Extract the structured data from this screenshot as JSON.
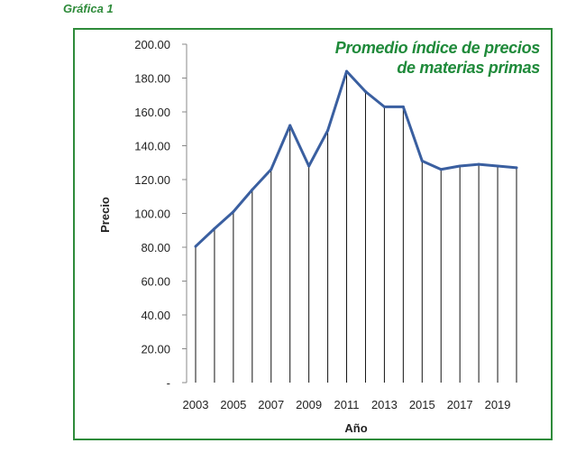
{
  "caption": "Gráfica 1",
  "chart_data": {
    "type": "line",
    "title_lines": [
      "Promedio índice de precios",
      "de materias primas"
    ],
    "xlabel": "Año",
    "ylabel": "Precio",
    "x": [
      2003,
      2004,
      2005,
      2006,
      2007,
      2008,
      2009,
      2010,
      2011,
      2012,
      2013,
      2014,
      2015,
      2016,
      2017,
      2018,
      2019,
      2020
    ],
    "x_tick_labels": [
      "2003",
      "2005",
      "2007",
      "2009",
      "2011",
      "2013",
      "2015",
      "2017",
      "2019"
    ],
    "y_tick_labels": [
      "-",
      "20.00",
      "40.00",
      "60.00",
      "80.00",
      "100.00",
      "120.00",
      "140.00",
      "160.00",
      "180.00",
      "200.00"
    ],
    "ylim": [
      0,
      200
    ],
    "series": [
      {
        "values": [
          80.5,
          91.0,
          101.0,
          114.0,
          126.0,
          152.0,
          128.0,
          149.0,
          184.0,
          172.0,
          163.0,
          163.0,
          131.0,
          126.0,
          128.0,
          129.0,
          128.0,
          127.0
        ]
      }
    ],
    "drop_lines": true,
    "line_color": "#3a5fa0",
    "grid": "vertical-drop-lines",
    "accent_color": "#2e8b3a"
  }
}
